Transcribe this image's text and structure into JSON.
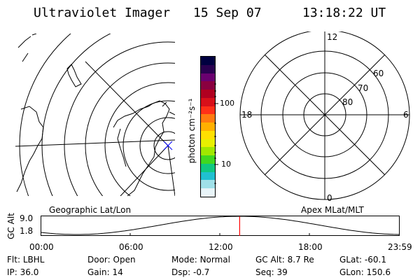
{
  "header": {
    "title": "Ultraviolet Imager",
    "date": "15 Sep 07",
    "time": "13:18:22 UT"
  },
  "colorbar": {
    "unit_label": "photon cm⁻²s⁻¹",
    "tick_labels": [
      "100",
      "10"
    ],
    "colors": [
      "#000040",
      "#2a0050",
      "#6a0070",
      "#8a0040",
      "#b00020",
      "#d8101a",
      "#ff3018",
      "#ff7a10",
      "#ffb000",
      "#ffe000",
      "#e8f000",
      "#a0e800",
      "#40d820",
      "#10c880",
      "#20c0d0",
      "#a0e0e8",
      "#e8f4f8"
    ]
  },
  "geo_panel": {
    "label": "Geographic Lat/Lon"
  },
  "polar_panel": {
    "label": "Apex MLat/MLT",
    "mlt_labels": {
      "top": "12",
      "right": "6",
      "bottom": "0",
      "left": "18"
    },
    "lat_labels": [
      "80",
      "70",
      "60"
    ]
  },
  "orbit_plot": {
    "ylabel": "GC Alt",
    "y_ticks": [
      "9.0",
      "1.8"
    ],
    "x_ticks": [
      "00:00",
      "06:00",
      "12:00",
      "18:00",
      "23:59"
    ],
    "marker_time": "13:18:22",
    "line_color": "#000000",
    "marker_color": "#ff0000"
  },
  "status": {
    "row1": [
      {
        "label": "Flt:",
        "value": "LBHL"
      },
      {
        "label": "Door:",
        "value": "Open"
      },
      {
        "label": "Mode:",
        "value": "Normal"
      },
      {
        "label": "GC Alt:",
        "value": "8.7 Re"
      },
      {
        "label": "GLat:",
        "value": "-60.1"
      }
    ],
    "row2": [
      {
        "label": "IP:",
        "value": "36.0"
      },
      {
        "label": "Gain:",
        "value": "14"
      },
      {
        "label": "Dsp:",
        "value": "-0.7"
      },
      {
        "label": "Seq:",
        "value": "39"
      },
      {
        "label": "GLon:",
        "value": "150.6"
      }
    ]
  }
}
